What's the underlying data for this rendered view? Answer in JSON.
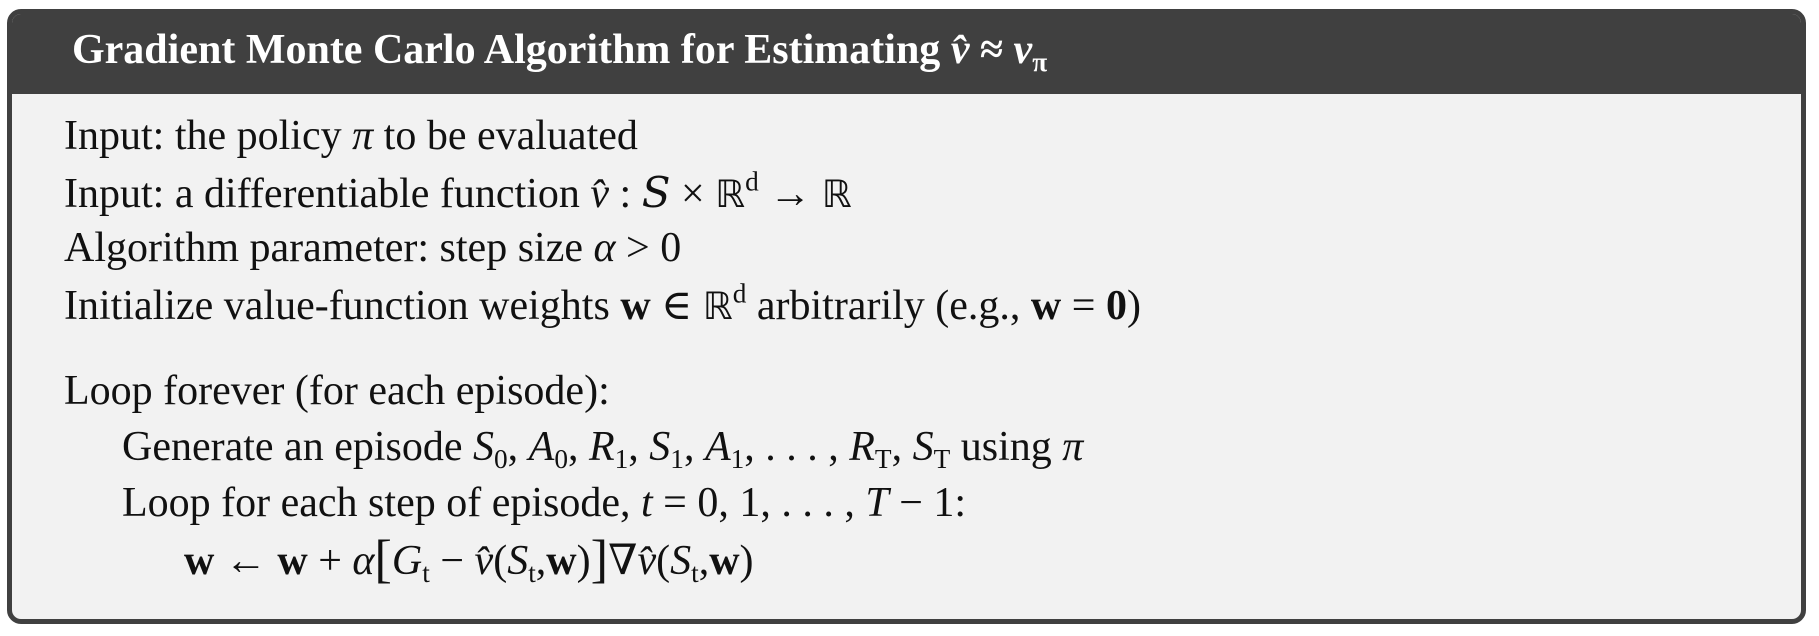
{
  "title": [
    {
      "t": "Gradient Monte Carlo Algorithm for Estimating "
    },
    {
      "t": "v̂",
      "s": "m"
    },
    {
      "t": " ≈ "
    },
    {
      "t": "v",
      "s": "m"
    },
    {
      "t": "π",
      "s": "sub"
    }
  ],
  "lines": [
    {
      "indent": 0,
      "segments": [
        {
          "t": "Input: the policy "
        },
        {
          "t": "π",
          "s": "m"
        },
        {
          "t": " to be evaluated"
        }
      ]
    },
    {
      "indent": 0,
      "segments": [
        {
          "t": "Input: a differentiable function "
        },
        {
          "t": "v̂",
          "s": "m"
        },
        {
          "t": " : "
        },
        {
          "t": "S",
          "s": "cal"
        },
        {
          "t": " × "
        },
        {
          "t": "ℝ",
          "s": "bb"
        },
        {
          "t": "d",
          "s": "sup"
        },
        {
          "t": " → "
        },
        {
          "t": "ℝ",
          "s": "bb"
        }
      ]
    },
    {
      "indent": 0,
      "segments": [
        {
          "t": "Algorithm parameter: step size "
        },
        {
          "t": "α",
          "s": "m"
        },
        {
          "t": " > 0"
        }
      ]
    },
    {
      "indent": 0,
      "segments": [
        {
          "t": "Initialize value-function weights "
        },
        {
          "t": "w",
          "s": "b"
        },
        {
          "t": " ∈ "
        },
        {
          "t": "ℝ",
          "s": "bb"
        },
        {
          "t": "d",
          "s": "sup"
        },
        {
          "t": " arbitrarily (e.g., "
        },
        {
          "t": "w",
          "s": "b"
        },
        {
          "t": " = "
        },
        {
          "t": "0",
          "s": "b"
        },
        {
          "t": ")"
        }
      ]
    },
    {
      "indent": 0,
      "gap": true,
      "segments": [
        {
          "t": "Loop forever (for each episode):"
        }
      ]
    },
    {
      "indent": 1,
      "segments": [
        {
          "t": "Generate an episode "
        },
        {
          "t": "S",
          "s": "m"
        },
        {
          "t": "0",
          "s": "sub"
        },
        {
          "t": ", "
        },
        {
          "t": "A",
          "s": "m"
        },
        {
          "t": "0",
          "s": "sub"
        },
        {
          "t": ", "
        },
        {
          "t": "R",
          "s": "m"
        },
        {
          "t": "1",
          "s": "sub"
        },
        {
          "t": ", "
        },
        {
          "t": "S",
          "s": "m"
        },
        {
          "t": "1",
          "s": "sub"
        },
        {
          "t": ", "
        },
        {
          "t": "A",
          "s": "m"
        },
        {
          "t": "1",
          "s": "sub"
        },
        {
          "t": ", . . . , "
        },
        {
          "t": "R",
          "s": "m"
        },
        {
          "t": "T",
          "s": "sub"
        },
        {
          "t": ", "
        },
        {
          "t": "S",
          "s": "m"
        },
        {
          "t": "T",
          "s": "sub"
        },
        {
          "t": " using "
        },
        {
          "t": "π",
          "s": "m"
        }
      ]
    },
    {
      "indent": 1,
      "segments": [
        {
          "t": "Loop for each step of episode, "
        },
        {
          "t": "t",
          "s": "m"
        },
        {
          "t": " = 0, 1, . . . , "
        },
        {
          "t": "T",
          "s": "m"
        },
        {
          "t": " − 1:"
        }
      ]
    },
    {
      "indent": 2,
      "segments": [
        {
          "t": "w",
          "s": "b"
        },
        {
          "t": " ← "
        },
        {
          "t": "w",
          "s": "b"
        },
        {
          "t": " + "
        },
        {
          "t": "α",
          "s": "m"
        },
        {
          "t": "[",
          "s": "br"
        },
        {
          "t": "G",
          "s": "m"
        },
        {
          "t": "t",
          "s": "sub"
        },
        {
          "t": " − "
        },
        {
          "t": "v̂",
          "s": "m"
        },
        {
          "t": "("
        },
        {
          "t": "S",
          "s": "m"
        },
        {
          "t": "t",
          "s": "sub"
        },
        {
          "t": ","
        },
        {
          "t": "w",
          "s": "b"
        },
        {
          "t": ")"
        },
        {
          "t": "]",
          "s": "br"
        },
        {
          "t": "∇"
        },
        {
          "t": "v̂",
          "s": "m"
        },
        {
          "t": "("
        },
        {
          "t": "S",
          "s": "m"
        },
        {
          "t": "t",
          "s": "sub"
        },
        {
          "t": ","
        },
        {
          "t": "w",
          "s": "b"
        },
        {
          "t": ")"
        }
      ]
    }
  ],
  "colors": {
    "header": "#404040",
    "background": "#f2f2f2",
    "border": "#404040"
  }
}
